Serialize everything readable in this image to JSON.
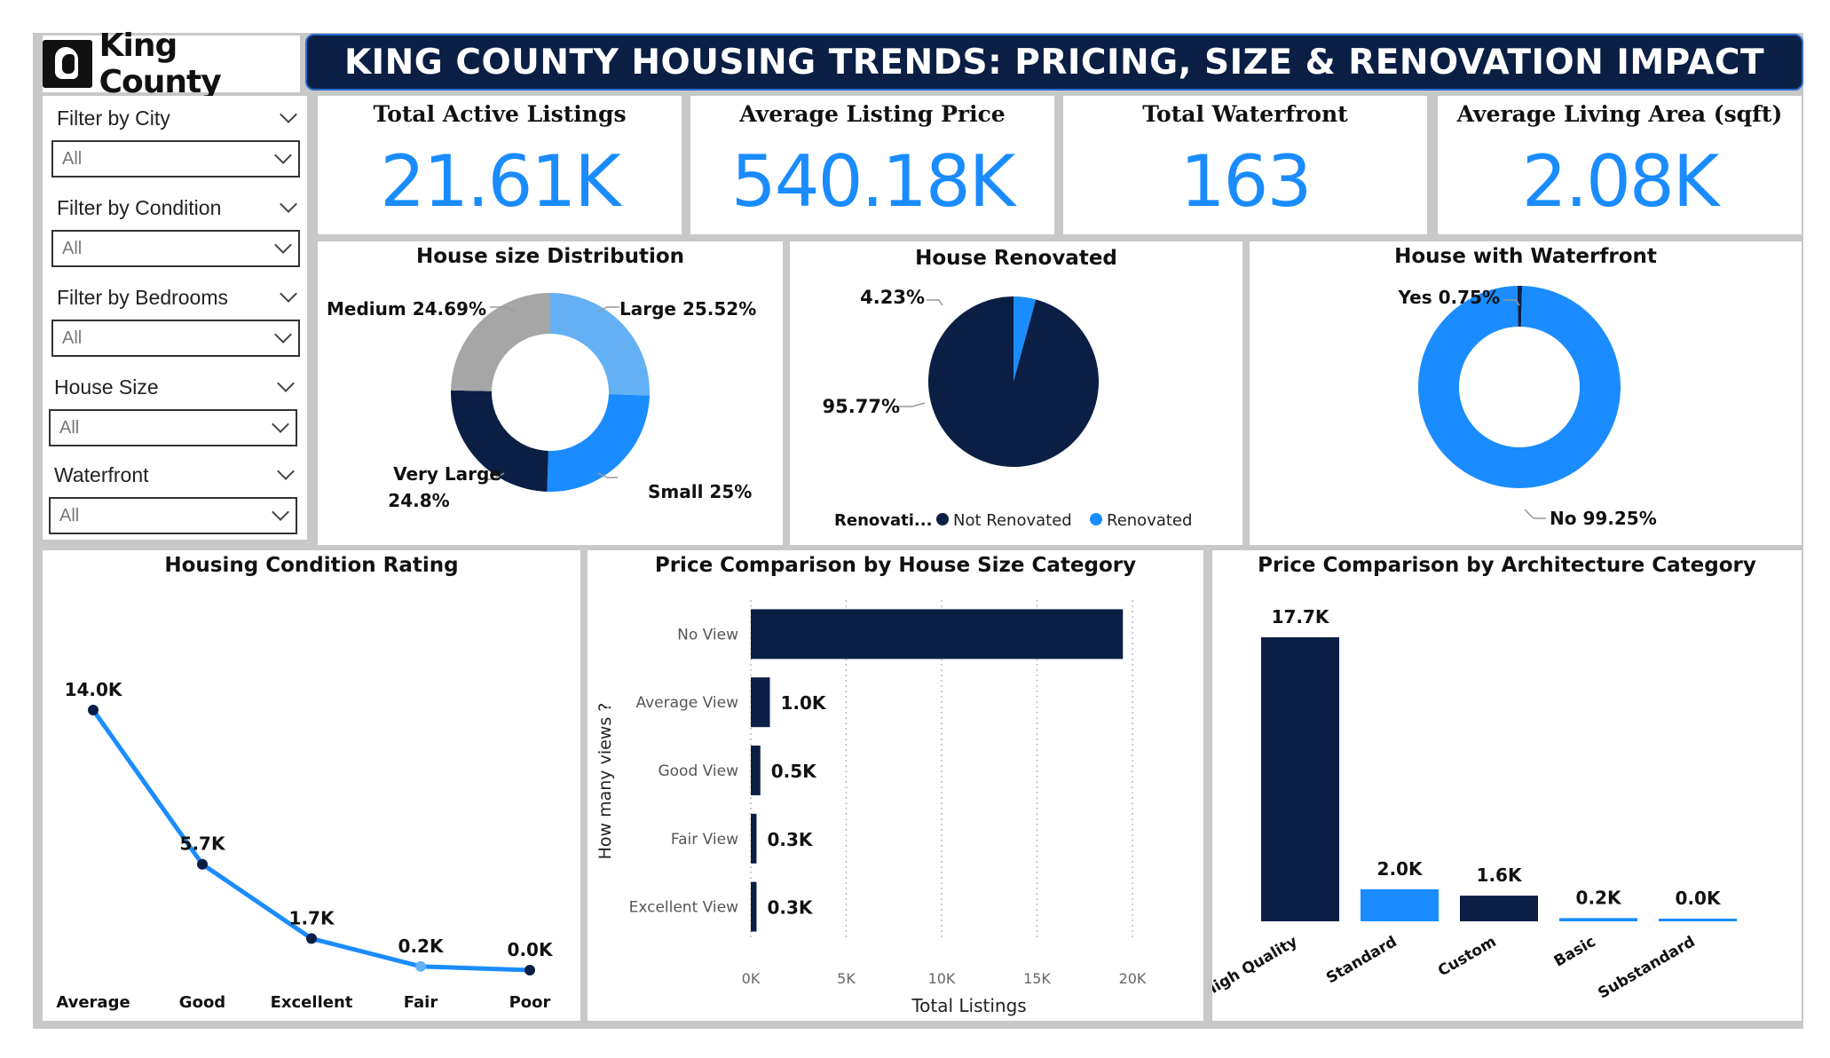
{
  "header": {
    "logo_text": "King County",
    "title": "KING COUNTY HOUSING TRENDS: PRICING, SIZE & RENOVATION IMPACT"
  },
  "filters": [
    {
      "label": "Filter by City",
      "value": "All"
    },
    {
      "label": "Filter by Condition",
      "value": "All"
    },
    {
      "label": "Filter by Bedrooms",
      "value": "All"
    },
    {
      "label": "House Size",
      "value": "All"
    },
    {
      "label": "Waterfront",
      "value": "All"
    }
  ],
  "kpis": [
    {
      "title": "Total Active Listings",
      "value": "21.61K"
    },
    {
      "title": "Average Listing Price",
      "value": "540.18K"
    },
    {
      "title": "Total Waterfront",
      "value": "163"
    },
    {
      "title": "Average Living Area (sqft)",
      "value": "2.08K"
    }
  ],
  "colors": {
    "navy": "#0b1f45",
    "blue": "#1a8cff",
    "light_blue": "#64b0f5",
    "gray": "#a6a6a6"
  },
  "chart_data": [
    {
      "type": "pie",
      "title": "House size Distribution",
      "slices": [
        {
          "label": "Large",
          "value": 25.52,
          "display": "Large 25.52%"
        },
        {
          "label": "Small",
          "value": 25.0,
          "display": "Small 25%"
        },
        {
          "label": "Very Large",
          "value": 24.8,
          "display_lines": [
            "Very Large",
            "24.8%"
          ]
        },
        {
          "label": "Medium",
          "value": 24.69,
          "display": "Medium 24.69%"
        }
      ]
    },
    {
      "type": "pie",
      "title": "House Renovated",
      "legend_title": "Renovati...",
      "legend": [
        "Not Renovated",
        "Renovated"
      ],
      "slices": [
        {
          "label": "Renovated",
          "value": 4.23,
          "display": "4.23%"
        },
        {
          "label": "Not Renovated",
          "value": 95.77,
          "display": "95.77%"
        }
      ]
    },
    {
      "type": "pie",
      "title": "House with Waterfront",
      "slices": [
        {
          "label": "Yes",
          "value": 0.75,
          "display": "Yes 0.75%"
        },
        {
          "label": "No",
          "value": 99.25,
          "display": "No 99.25%"
        }
      ]
    },
    {
      "type": "line",
      "title": "Housing Condition Rating",
      "categories": [
        "Average",
        "Good",
        "Excellent",
        "Fair",
        "Poor"
      ],
      "values": [
        14.0,
        5.7,
        1.7,
        0.2,
        0.0
      ],
      "labels": [
        "14.0K",
        "5.7K",
        "1.7K",
        "0.2K",
        "0.0K"
      ]
    },
    {
      "type": "bar",
      "orientation": "horizontal",
      "title": "Price Comparison by House Size Category",
      "xlabel": "Total Listings",
      "ylabel": "How many views ?",
      "categories": [
        "No View",
        "Average View",
        "Good View",
        "Fair View",
        "Excellent View"
      ],
      "values": [
        19.5,
        1.0,
        0.5,
        0.3,
        0.3
      ],
      "labels": [
        "",
        "1.0K",
        "0.5K",
        "0.3K",
        "0.3K"
      ],
      "xticks": [
        {
          "v": 0,
          "label": "0K"
        },
        {
          "v": 5,
          "label": "5K"
        },
        {
          "v": 10,
          "label": "10K"
        },
        {
          "v": 15,
          "label": "15K"
        },
        {
          "v": 20,
          "label": "20K"
        }
      ],
      "xlim": [
        0,
        20
      ]
    },
    {
      "type": "bar",
      "title": "Price Comparison by Architecture Category",
      "categories": [
        "High Quality",
        "Standard",
        "Custom",
        "Basic",
        "Substandard"
      ],
      "values": [
        17.7,
        2.0,
        1.6,
        0.2,
        0.0
      ],
      "labels": [
        "17.7K",
        "2.0K",
        "1.6K",
        "0.2K",
        "0.0K"
      ]
    }
  ]
}
